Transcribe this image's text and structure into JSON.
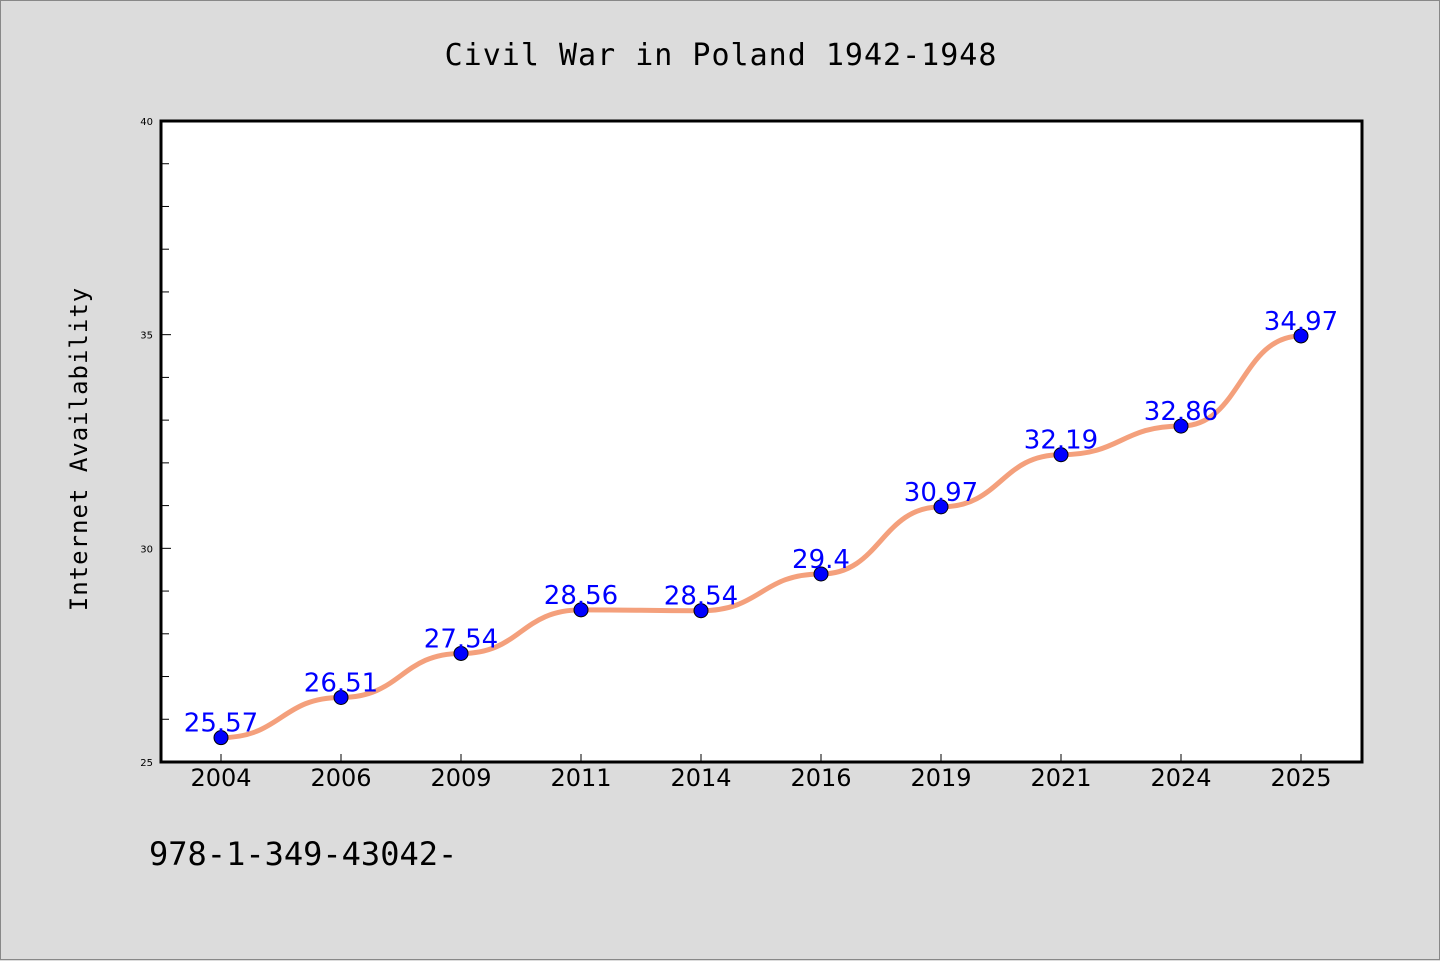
{
  "chart_data": {
    "type": "line",
    "title": "Civil War in Poland 1942-1948",
    "xlabel": "",
    "ylabel": "Internet Availability",
    "categories": [
      "2004",
      "2006",
      "2009",
      "2011",
      "2014",
      "2016",
      "2019",
      "2021",
      "2024",
      "2025"
    ],
    "series": [
      {
        "values": [
          25.57,
          26.51,
          27.54,
          28.56,
          28.54,
          29.4,
          30.97,
          32.19,
          32.86,
          34.97
        ],
        "labels": [
          "25.57",
          "26.51",
          "27.54",
          "28.56",
          "28.54",
          "29.4",
          "30.97",
          "32.19",
          "32.86",
          "34.97"
        ]
      }
    ],
    "ylim": [
      25,
      40
    ],
    "yticks": [
      "25",
      "30",
      "35",
      "40"
    ],
    "grid": false,
    "colors": {
      "line": "#f4a07c",
      "marker": "#0000ff",
      "label": "#0000ff",
      "background": "#dcdcdc",
      "plot_background": "#ffffff"
    }
  },
  "footer": {
    "text": "978-1-349-43042-"
  }
}
